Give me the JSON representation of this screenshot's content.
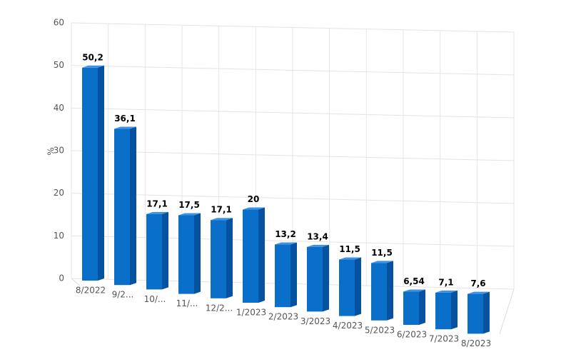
{
  "chart_data": {
    "type": "bar3d",
    "y_label": "%",
    "categories": [
      "8/2022",
      "9/2...",
      "10/...",
      "11/...",
      "12/2...",
      "1/2023",
      "2/2023",
      "3/2023",
      "4/2023",
      "5/2023",
      "6/2023",
      "7/2023",
      "8/2023"
    ],
    "values": [
      50.2,
      36.1,
      17.1,
      17.5,
      17.1,
      20,
      13.2,
      13.4,
      11.5,
      11.5,
      6.54,
      7.1,
      7.6
    ],
    "value_labels": [
      "50,2",
      "36,1",
      "17,1",
      "17,5",
      "17,1",
      "20",
      "13,2",
      "13,4",
      "11,5",
      "11,5",
      "6,54",
      "7,1",
      "7,6"
    ],
    "color": "#0a6fc9",
    "ylim": [
      0,
      60
    ],
    "yticks": [
      0,
      10,
      20,
      30,
      40,
      50,
      60
    ],
    "grid": true
  }
}
